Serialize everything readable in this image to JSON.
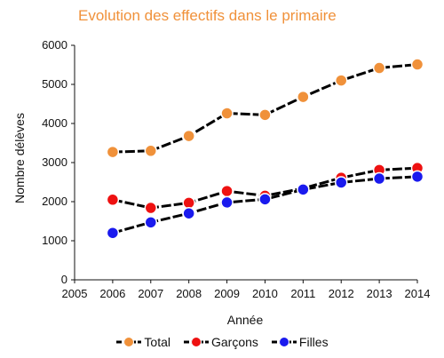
{
  "chart_data": {
    "type": "line",
    "title": "Evolution des effectifs dans le primaire",
    "xlabel": "Année",
    "ylabel": "Nombre délèves",
    "x": [
      2006,
      2007,
      2008,
      2009,
      2010,
      2011,
      2012,
      2013,
      2014
    ],
    "xlim": [
      2005,
      2014
    ],
    "xticks": [
      "2005",
      "2006",
      "2007",
      "2008",
      "2009",
      "2010",
      "2011",
      "2012",
      "2013",
      "2014"
    ],
    "ylim": [
      0,
      6000
    ],
    "yticks": [
      "0",
      "1000",
      "2000",
      "3000",
      "4000",
      "5000",
      "6000"
    ],
    "grid": false,
    "legend_position": "bottom",
    "series": [
      {
        "name": "Total",
        "color": "#f0913a",
        "values": [
          3270,
          3300,
          3680,
          4260,
          4220,
          4680,
          5100,
          5420,
          5510
        ]
      },
      {
        "name": "Garçons",
        "color": "#ee1111",
        "values": [
          2050,
          1840,
          1970,
          2270,
          2150,
          2340,
          2610,
          2810,
          2860
        ]
      },
      {
        "name": "Filles",
        "color": "#1a1aee",
        "values": [
          1200,
          1470,
          1700,
          1980,
          2060,
          2310,
          2490,
          2590,
          2640
        ]
      }
    ]
  }
}
